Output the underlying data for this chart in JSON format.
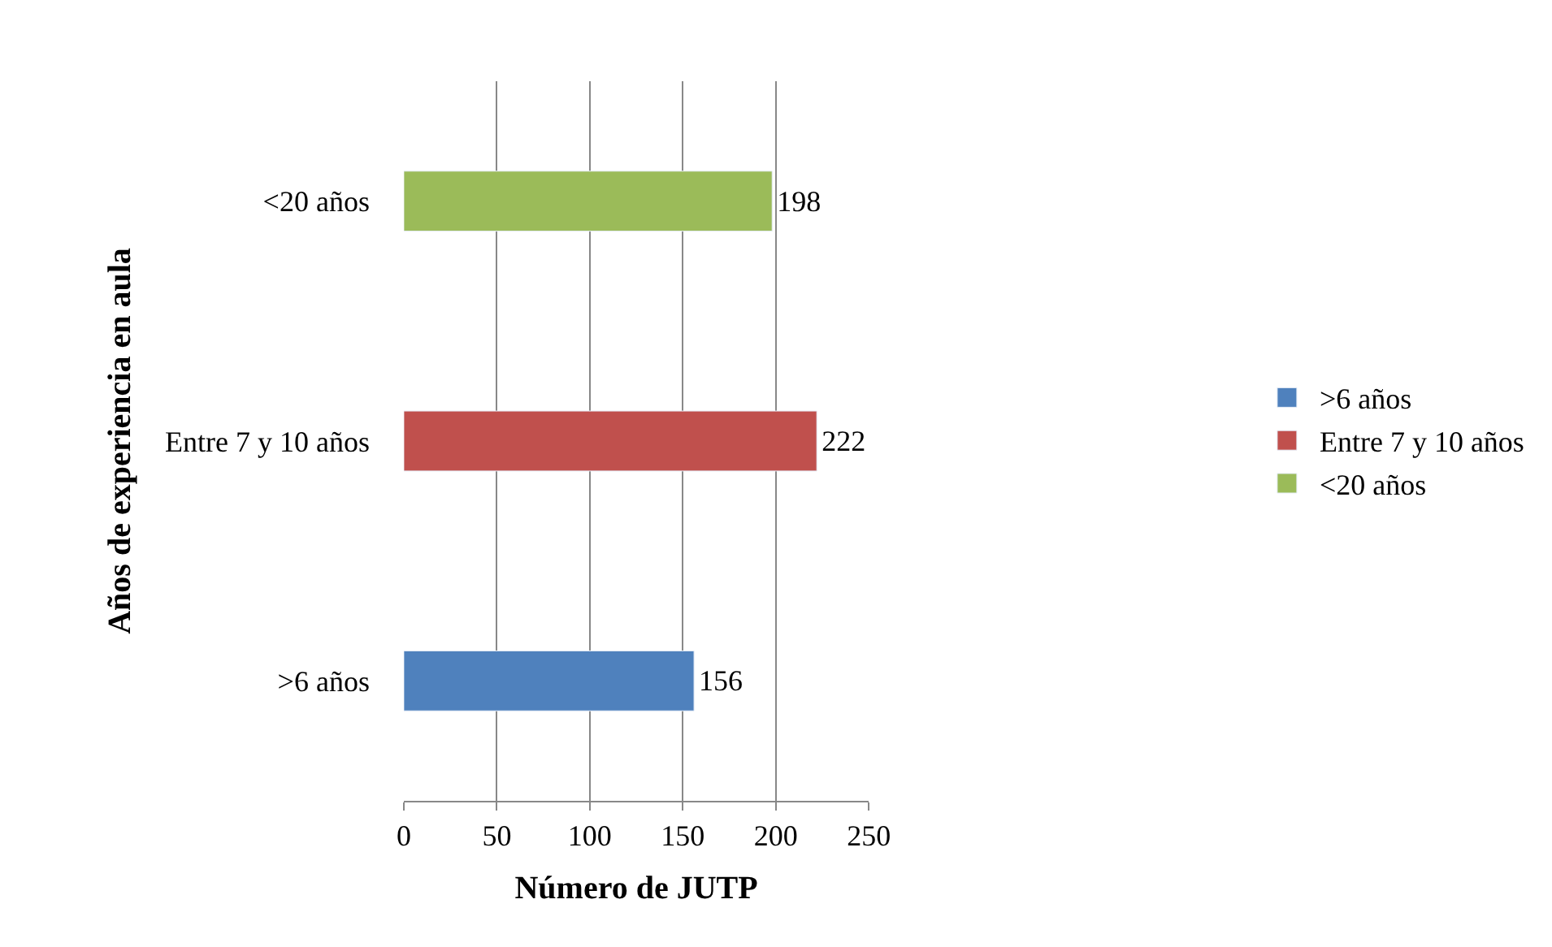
{
  "chart_data": {
    "type": "bar",
    "orientation": "horizontal",
    "xlabel": "Número de JUTP",
    "ylabel": "Años de experiencia en aula",
    "categories": [
      "<20 años",
      "Entre 7 y 10 años",
      ">6 años"
    ],
    "series": [
      {
        "name": ">6 años",
        "color": "#4f81bd",
        "values": [
          null,
          null,
          156
        ]
      },
      {
        "name": "Entre 7 y 10 años",
        "color": "#c0504d",
        "values": [
          null,
          222,
          null
        ]
      },
      {
        "name": "<20 años",
        "color": "#9bbb59",
        "values": [
          198,
          null,
          null
        ]
      }
    ],
    "xlim": [
      0,
      250
    ],
    "xticks": [
      0,
      50,
      100,
      150,
      200,
      250
    ],
    "grid": "x",
    "legend": "right",
    "data_labels": true
  }
}
